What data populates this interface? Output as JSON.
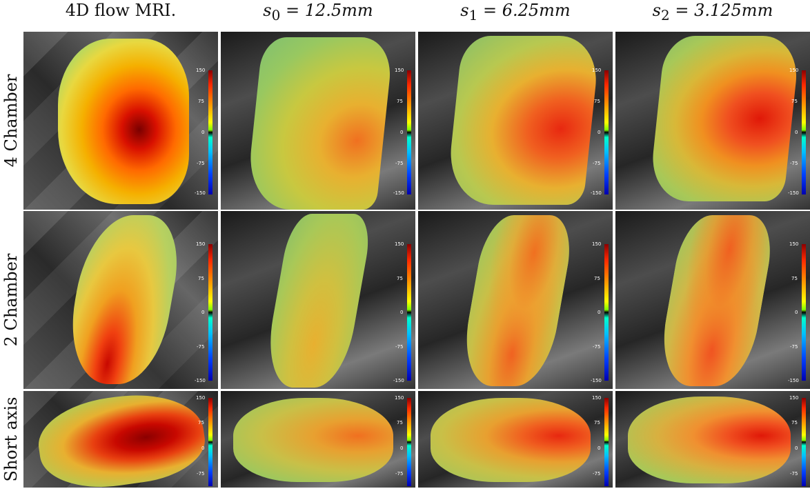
{
  "columns": [
    {
      "label": "4D flow MRI."
    },
    {
      "label": "s",
      "sub": "0",
      "eq": " = 12.5mm"
    },
    {
      "label": "s",
      "sub": "1",
      "eq": " = 6.25mm"
    },
    {
      "label": "s",
      "sub": "2",
      "eq": " = 3.125mm"
    }
  ],
  "rows": [
    {
      "label": "4 Chamber"
    },
    {
      "label": "2 Chamber"
    },
    {
      "label": "Short axis"
    }
  ],
  "colorbar": {
    "ticks_full": [
      "150",
      "75",
      "0",
      "-75",
      "-150"
    ],
    "ticks_short": [
      "150",
      "75",
      "0",
      "-75"
    ]
  },
  "colors": {
    "flow_high": "#e01000",
    "flow_mid": "#f0c000",
    "flow_low": "#8fd060"
  }
}
